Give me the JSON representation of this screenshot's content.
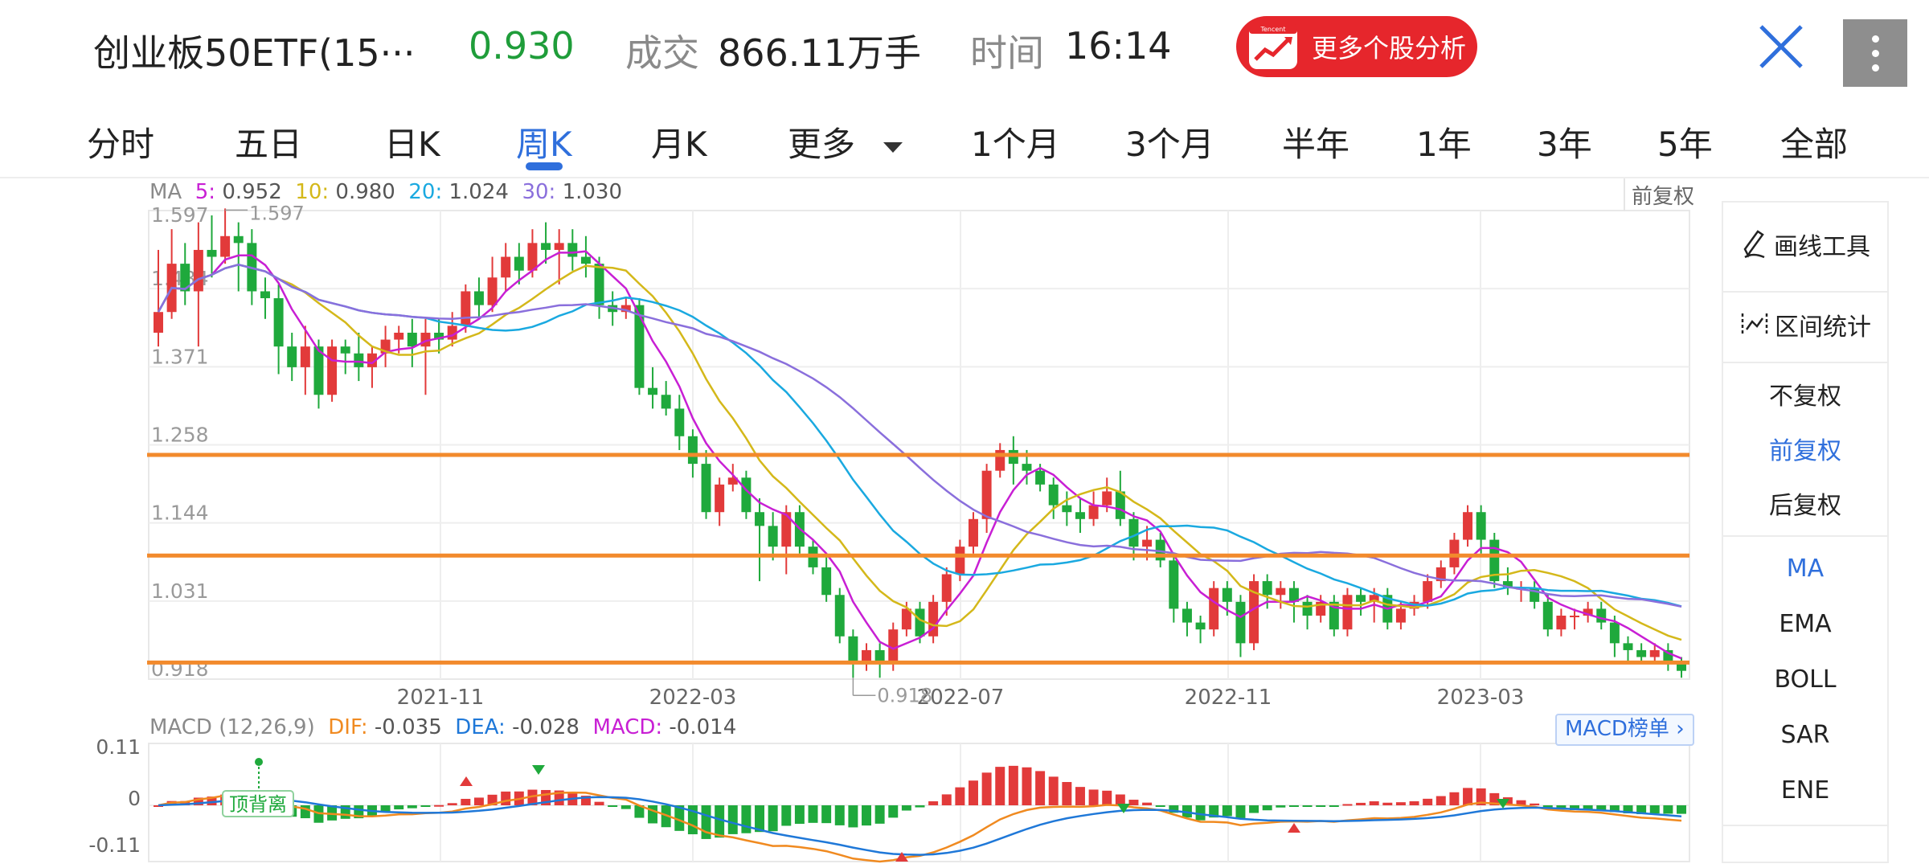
{
  "header": {
    "title": "创业板50ETF(15···",
    "price": "0.930",
    "volume_label": "成交",
    "volume": "866.11万手",
    "time_label": "时间",
    "time": "16:14",
    "more_analysis_label": "更多个股分析",
    "logo_text": "Tencent"
  },
  "tabs": [
    {
      "label": "分时"
    },
    {
      "label": "五日"
    },
    {
      "label": "日K"
    },
    {
      "label": "周K",
      "active": true
    },
    {
      "label": "月K"
    },
    {
      "label": "更多"
    },
    {
      "label": "1个月"
    },
    {
      "label": "3个月"
    },
    {
      "label": "半年"
    },
    {
      "label": "1年"
    },
    {
      "label": "3年"
    },
    {
      "label": "5年"
    },
    {
      "label": "全部"
    }
  ],
  "ma_legend": {
    "label": "MA",
    "ma5_label": "5:",
    "ma5": "0.952",
    "ma10_label": "10:",
    "ma10": "0.980",
    "ma20_label": "20:",
    "ma20": "1.024",
    "ma30_label": "30:",
    "ma30": "1.030"
  },
  "adjust_tag": "前复权",
  "macd_legend": {
    "label": "MACD",
    "params": "(12,26,9)",
    "dif_label": "DIF:",
    "dif": "-0.035",
    "dea_label": "DEA:",
    "dea": "-0.028",
    "macd_label": "MACD:",
    "macd": "-0.014"
  },
  "macd_rank_button": "MACD榜单",
  "divergence_tag": "顶背离",
  "colors": {
    "up": "#e23a3a",
    "down": "#1fa93c",
    "ma5": "#c81fd4",
    "ma10": "#d4b81a",
    "ma20": "#1aa9e0",
    "ma30": "#8a6fdc",
    "dif": "#f08a20",
    "dea": "#1f78d8",
    "support_line": "#f28a2c",
    "accent": "#2f6fdc"
  },
  "sidebar": {
    "tools": [
      {
        "label": "画线工具",
        "icon": "pen-icon"
      },
      {
        "label": "区间统计",
        "icon": "range-stat-icon"
      }
    ],
    "adjust": [
      {
        "label": "不复权"
      },
      {
        "label": "前复权",
        "active": true
      },
      {
        "label": "后复权"
      }
    ],
    "indicators": [
      {
        "label": "MA",
        "active": true
      },
      {
        "label": "EMA"
      },
      {
        "label": "BOLL"
      },
      {
        "label": "SAR"
      },
      {
        "label": "ENE"
      }
    ]
  },
  "chart_data": {
    "type": "candlestick",
    "y_ticks": [
      "1.597",
      "1.484",
      "1.371",
      "1.258",
      "1.144",
      "1.031",
      "0.918"
    ],
    "ylim": [
      0.918,
      1.597
    ],
    "x_ticks": [
      "2021-11",
      "2022-03",
      "2022-07",
      "2022-11",
      "2023-03"
    ],
    "max_label": "1.597",
    "min_label": "0.918",
    "horizontal_lines": [
      1.243,
      1.097,
      0.942
    ],
    "candles": [
      [
        1.42,
        1.45,
        1.54,
        1.4
      ],
      [
        1.45,
        1.52,
        1.57,
        1.44
      ],
      [
        1.52,
        1.48,
        1.55,
        1.46
      ],
      [
        1.48,
        1.54,
        1.58,
        1.4
      ],
      [
        1.54,
        1.53,
        1.59,
        1.5
      ],
      [
        1.53,
        1.56,
        1.6,
        1.52
      ],
      [
        1.56,
        1.55,
        1.58,
        1.48
      ],
      [
        1.55,
        1.48,
        1.57,
        1.46
      ],
      [
        1.48,
        1.47,
        1.5,
        1.44
      ],
      [
        1.47,
        1.4,
        1.49,
        1.36
      ],
      [
        1.4,
        1.37,
        1.42,
        1.35
      ],
      [
        1.37,
        1.4,
        1.43,
        1.33
      ],
      [
        1.4,
        1.33,
        1.41,
        1.31
      ],
      [
        1.33,
        1.4,
        1.41,
        1.32
      ],
      [
        1.4,
        1.39,
        1.41,
        1.36
      ],
      [
        1.39,
        1.37,
        1.42,
        1.35
      ],
      [
        1.37,
        1.39,
        1.4,
        1.34
      ],
      [
        1.39,
        1.41,
        1.43,
        1.37
      ],
      [
        1.41,
        1.42,
        1.43,
        1.39
      ],
      [
        1.42,
        1.4,
        1.44,
        1.37
      ],
      [
        1.4,
        1.42,
        1.44,
        1.33
      ],
      [
        1.42,
        1.41,
        1.44,
        1.39
      ],
      [
        1.41,
        1.43,
        1.45,
        1.4
      ],
      [
        1.43,
        1.48,
        1.49,
        1.42
      ],
      [
        1.48,
        1.46,
        1.5,
        1.44
      ],
      [
        1.46,
        1.5,
        1.53,
        1.45
      ],
      [
        1.5,
        1.53,
        1.55,
        1.48
      ],
      [
        1.53,
        1.51,
        1.55,
        1.49
      ],
      [
        1.51,
        1.55,
        1.57,
        1.5
      ],
      [
        1.55,
        1.54,
        1.58,
        1.52
      ],
      [
        1.54,
        1.55,
        1.57,
        1.49
      ],
      [
        1.55,
        1.53,
        1.57,
        1.51
      ],
      [
        1.53,
        1.52,
        1.56,
        1.5
      ],
      [
        1.52,
        1.46,
        1.53,
        1.44
      ],
      [
        1.46,
        1.45,
        1.48,
        1.43
      ],
      [
        1.45,
        1.46,
        1.47,
        1.44
      ],
      [
        1.46,
        1.34,
        1.47,
        1.33
      ],
      [
        1.34,
        1.33,
        1.37,
        1.31
      ],
      [
        1.33,
        1.31,
        1.35,
        1.3
      ],
      [
        1.31,
        1.27,
        1.33,
        1.25
      ],
      [
        1.27,
        1.23,
        1.28,
        1.21
      ],
      [
        1.23,
        1.16,
        1.25,
        1.15
      ],
      [
        1.16,
        1.2,
        1.21,
        1.14
      ],
      [
        1.2,
        1.21,
        1.23,
        1.19
      ],
      [
        1.21,
        1.16,
        1.22,
        1.15
      ],
      [
        1.16,
        1.14,
        1.18,
        1.06
      ],
      [
        1.14,
        1.11,
        1.16,
        1.09
      ],
      [
        1.11,
        1.16,
        1.17,
        1.07
      ],
      [
        1.16,
        1.11,
        1.17,
        1.1
      ],
      [
        1.11,
        1.08,
        1.12,
        1.07
      ],
      [
        1.08,
        1.04,
        1.1,
        1.03
      ],
      [
        1.04,
        0.98,
        1.05,
        0.97
      ],
      [
        0.98,
        0.94,
        0.99,
        0.92
      ],
      [
        0.94,
        0.96,
        0.97,
        0.93
      ],
      [
        0.96,
        0.94,
        0.97,
        0.92
      ],
      [
        0.94,
        0.99,
        1.0,
        0.93
      ],
      [
        0.99,
        1.02,
        1.03,
        0.98
      ],
      [
        1.02,
        0.98,
        1.03,
        0.97
      ],
      [
        0.98,
        1.03,
        1.04,
        0.97
      ],
      [
        1.03,
        1.07,
        1.08,
        1.01
      ],
      [
        1.07,
        1.11,
        1.12,
        1.06
      ],
      [
        1.11,
        1.15,
        1.16,
        1.1
      ],
      [
        1.15,
        1.22,
        1.23,
        1.13
      ],
      [
        1.22,
        1.25,
        1.26,
        1.21
      ],
      [
        1.25,
        1.23,
        1.27,
        1.2
      ],
      [
        1.23,
        1.22,
        1.25,
        1.2
      ],
      [
        1.22,
        1.2,
        1.23,
        1.19
      ],
      [
        1.2,
        1.17,
        1.21,
        1.15
      ],
      [
        1.17,
        1.16,
        1.19,
        1.14
      ],
      [
        1.16,
        1.15,
        1.18,
        1.13
      ],
      [
        1.15,
        1.17,
        1.19,
        1.14
      ],
      [
        1.17,
        1.19,
        1.21,
        1.16
      ],
      [
        1.19,
        1.15,
        1.22,
        1.14
      ],
      [
        1.15,
        1.11,
        1.16,
        1.09
      ],
      [
        1.11,
        1.12,
        1.14,
        1.09
      ],
      [
        1.12,
        1.09,
        1.13,
        1.08
      ],
      [
        1.09,
        1.02,
        1.1,
        1.0
      ],
      [
        1.02,
        1.0,
        1.03,
        0.98
      ],
      [
        1.0,
        0.99,
        1.01,
        0.97
      ],
      [
        0.99,
        1.05,
        1.06,
        0.98
      ],
      [
        1.05,
        1.03,
        1.06,
        1.01
      ],
      [
        1.03,
        0.97,
        1.04,
        0.95
      ],
      [
        0.97,
        1.06,
        1.07,
        0.96
      ],
      [
        1.06,
        1.04,
        1.07,
        1.02
      ],
      [
        1.04,
        1.05,
        1.06,
        1.02
      ],
      [
        1.05,
        1.03,
        1.06,
        1.0
      ],
      [
        1.03,
        1.01,
        1.04,
        0.99
      ],
      [
        1.01,
        1.03,
        1.04,
        1.0
      ],
      [
        1.03,
        0.99,
        1.04,
        0.98
      ],
      [
        0.99,
        1.04,
        1.05,
        0.98
      ],
      [
        1.04,
        1.03,
        1.05,
        1.01
      ],
      [
        1.03,
        1.04,
        1.05,
        1.0
      ],
      [
        1.04,
        1.0,
        1.05,
        0.99
      ],
      [
        1.0,
        1.02,
        1.03,
        0.99
      ],
      [
        1.02,
        1.03,
        1.04,
        1.01
      ],
      [
        1.03,
        1.06,
        1.07,
        1.02
      ],
      [
        1.06,
        1.08,
        1.09,
        1.05
      ],
      [
        1.08,
        1.12,
        1.13,
        1.07
      ],
      [
        1.12,
        1.16,
        1.17,
        1.11
      ],
      [
        1.16,
        1.12,
        1.17,
        1.1
      ],
      [
        1.12,
        1.06,
        1.13,
        1.05
      ],
      [
        1.06,
        1.05,
        1.08,
        1.04
      ],
      [
        1.05,
        1.05,
        1.06,
        1.03
      ],
      [
        1.05,
        1.03,
        1.06,
        1.02
      ],
      [
        1.03,
        0.99,
        1.04,
        0.98
      ],
      [
        0.99,
        1.01,
        1.02,
        0.98
      ],
      [
        1.01,
        1.01,
        1.02,
        0.99
      ],
      [
        1.01,
        1.02,
        1.03,
        1.0
      ],
      [
        1.02,
        1.0,
        1.03,
        0.99
      ],
      [
        1.0,
        0.97,
        1.01,
        0.95
      ],
      [
        0.97,
        0.96,
        0.98,
        0.94
      ],
      [
        0.96,
        0.95,
        0.97,
        0.94
      ],
      [
        0.95,
        0.96,
        0.97,
        0.94
      ],
      [
        0.96,
        0.94,
        0.97,
        0.93
      ],
      [
        0.94,
        0.93,
        0.95,
        0.92
      ]
    ],
    "ma5_end": 0.952,
    "ma10_end": 0.98,
    "ma20_end": 1.024,
    "ma30_end": 1.03,
    "macd": {
      "y_ticks": [
        "0.11",
        "0",
        "-0.11"
      ],
      "ylim": [
        -0.11,
        0.11
      ],
      "dif_end": -0.035,
      "dea_end": -0.028,
      "hist_end": -0.014
    }
  }
}
